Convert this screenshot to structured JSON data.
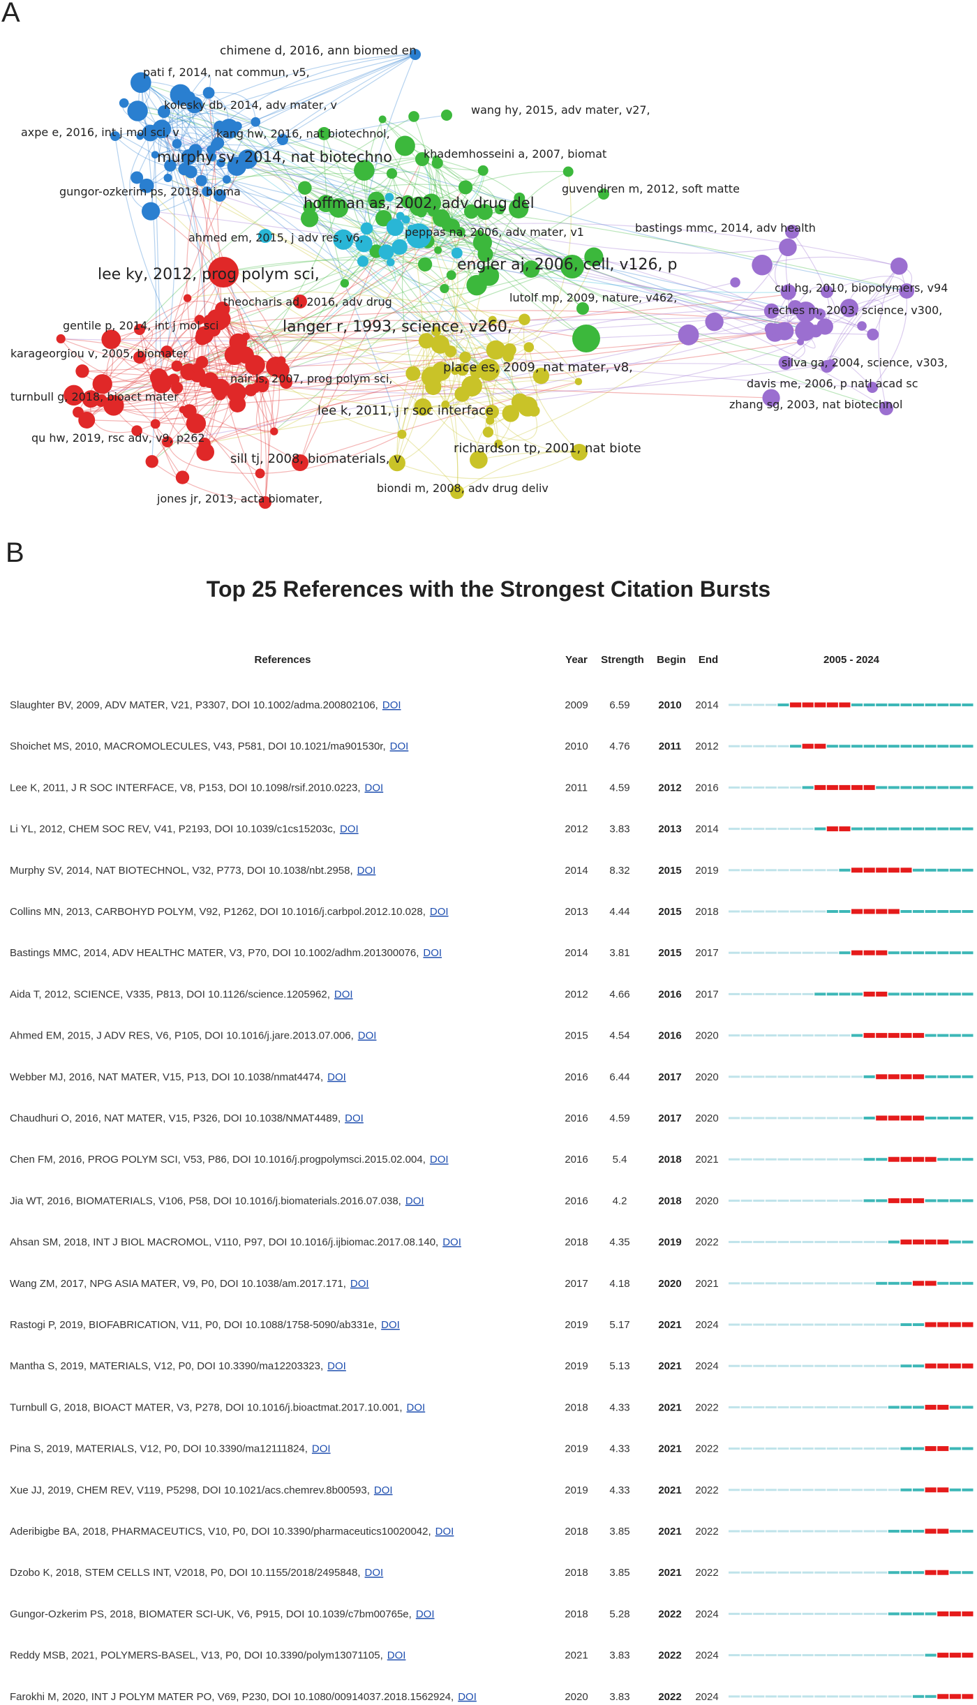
{
  "panels": {
    "a_label": "A",
    "b_label": "B"
  },
  "chart_data": [
    {
      "type": "network",
      "clusters": [
        {
          "color": "#2a7fd0",
          "nodes": [
            {
              "label": "chimene d, 2016, ann biomed en"
            },
            {
              "label": "pati f, 2014, nat commun, v5,"
            },
            {
              "label": "kolesky db, 2014, adv mater, v"
            },
            {
              "label": "axpe e, 2016, int j mol sci, v"
            },
            {
              "label": "kang hw, 2016, nat biotechnol,"
            },
            {
              "label": "murphy sv, 2014, nat biotechno"
            },
            {
              "label": "gungor-ozkerim ps, 2018, bioma"
            }
          ]
        },
        {
          "color": "#3cb83c",
          "nodes": [
            {
              "label": "wang hy, 2015, adv mater, v27,"
            },
            {
              "label": "khademhosseini a, 2007, biomat"
            },
            {
              "label": "hoffman as, 2002, adv drug del"
            },
            {
              "label": "guvendiren m, 2012, soft matte"
            },
            {
              "label": "engler aj, 2006, cell, v126, p"
            },
            {
              "label": "lutolf mp, 2009, nature, v462,"
            },
            {
              "label": "langer r, 1993, science, v260,"
            }
          ]
        },
        {
          "color": "#29b6d6",
          "nodes": [
            {
              "label": "ahmed em, 2015, j adv res, v6,"
            },
            {
              "label": "peppas na, 2006, adv mater, v1"
            }
          ]
        },
        {
          "color": "#e02828",
          "nodes": [
            {
              "label": "lee ky, 2012, prog polym sci,"
            },
            {
              "label": "theocharis ad, 2016, adv drug"
            },
            {
              "label": "gentile p, 2014, int j mol sci"
            },
            {
              "label": "karageorgiou v, 2005, biomater"
            },
            {
              "label": "nair ls, 2007, prog polym sci,"
            },
            {
              "label": "turnbull g, 2018, bioact mater"
            },
            {
              "label": "qu hw, 2019, rsc adv, v9, p262"
            },
            {
              "label": "sill tj, 2008, biomaterials, v"
            },
            {
              "label": "jones jr, 2013, acta biomater,"
            }
          ]
        },
        {
          "color": "#c9c328",
          "nodes": [
            {
              "label": "place es, 2009, nat mater, v8,"
            },
            {
              "label": "lee k, 2011, j r soc interface"
            },
            {
              "label": "richardson tp, 2001, nat biote"
            },
            {
              "label": "biondi m, 2008, adv drug deliv"
            }
          ]
        },
        {
          "color": "#9b6fd0",
          "nodes": [
            {
              "label": "bastings mmc, 2014, adv health"
            },
            {
              "label": "cui hg, 2010, biopolymers, v94"
            },
            {
              "label": "reches m, 2003, science, v300,"
            },
            {
              "label": "silva ga, 2004, science, v303,"
            },
            {
              "label": "davis me, 2006, p natl acad sc"
            },
            {
              "label": "zhang sg, 2003, nat biotechnol"
            }
          ]
        }
      ]
    },
    {
      "type": "table",
      "title": "Top 25 References with the Strongest Citation Bursts",
      "columns": [
        "References",
        "Year",
        "Strength",
        "Begin",
        "End",
        "2005 - 2024"
      ],
      "year_range": [
        2005,
        2024
      ],
      "colors": {
        "burst": "#e51b1b",
        "active": "#3db7b7",
        "inactive": "#bfe3ea"
      },
      "link_label": "DOI",
      "rows": [
        {
          "ref": "Slaughter BV, 2009, ADV MATER, V21, P3307, DOI 10.1002/adma.200802106,",
          "year": 2009,
          "strength": "6.59",
          "begin": 2010,
          "end": 2014
        },
        {
          "ref": "Shoichet MS, 2010, MACROMOLECULES, V43, P581, DOI 10.1021/ma901530r,",
          "year": 2010,
          "strength": "4.76",
          "begin": 2011,
          "end": 2012
        },
        {
          "ref": "Lee K, 2011, J R SOC INTERFACE, V8, P153, DOI 10.1098/rsif.2010.0223,",
          "year": 2011,
          "strength": "4.59",
          "begin": 2012,
          "end": 2016
        },
        {
          "ref": "Li YL, 2012, CHEM SOC REV, V41, P2193, DOI 10.1039/c1cs15203c,",
          "year": 2012,
          "strength": "3.83",
          "begin": 2013,
          "end": 2014
        },
        {
          "ref": "Murphy SV, 2014, NAT BIOTECHNOL, V32, P773, DOI 10.1038/nbt.2958,",
          "year": 2014,
          "strength": "8.32",
          "begin": 2015,
          "end": 2019
        },
        {
          "ref": "Collins MN, 2013, CARBOHYD POLYM, V92, P1262, DOI 10.1016/j.carbpol.2012.10.028,",
          "year": 2013,
          "strength": "4.44",
          "begin": 2015,
          "end": 2018
        },
        {
          "ref": "Bastings MMC, 2014, ADV HEALTHC MATER, V3, P70, DOI 10.1002/adhm.201300076,",
          "year": 2014,
          "strength": "3.81",
          "begin": 2015,
          "end": 2017
        },
        {
          "ref": "Aida T, 2012, SCIENCE, V335, P813, DOI 10.1126/science.1205962,",
          "year": 2012,
          "strength": "4.66",
          "begin": 2016,
          "end": 2017
        },
        {
          "ref": "Ahmed EM, 2015, J ADV RES, V6, P105, DOI 10.1016/j.jare.2013.07.006,",
          "year": 2015,
          "strength": "4.54",
          "begin": 2016,
          "end": 2020
        },
        {
          "ref": "Webber MJ, 2016, NAT MATER, V15, P13, DOI 10.1038/nmat4474,",
          "year": 2016,
          "strength": "6.44",
          "begin": 2017,
          "end": 2020
        },
        {
          "ref": "Chaudhuri O, 2016, NAT MATER, V15, P326, DOI 10.1038/NMAT4489,",
          "year": 2016,
          "strength": "4.59",
          "begin": 2017,
          "end": 2020
        },
        {
          "ref": "Chen FM, 2016, PROG POLYM SCI, V53, P86, DOI 10.1016/j.progpolymsci.2015.02.004,",
          "year": 2016,
          "strength": "5.4",
          "begin": 2018,
          "end": 2021
        },
        {
          "ref": "Jia WT, 2016, BIOMATERIALS, V106, P58, DOI 10.1016/j.biomaterials.2016.07.038,",
          "year": 2016,
          "strength": "4.2",
          "begin": 2018,
          "end": 2020
        },
        {
          "ref": "Ahsan SM, 2018, INT J BIOL MACROMOL, V110, P97, DOI 10.1016/j.ijbiomac.2017.08.140,",
          "year": 2018,
          "strength": "4.35",
          "begin": 2019,
          "end": 2022
        },
        {
          "ref": "Wang ZM, 2017, NPG ASIA MATER, V9, P0, DOI 10.1038/am.2017.171,",
          "year": 2017,
          "strength": "4.18",
          "begin": 2020,
          "end": 2021
        },
        {
          "ref": "Rastogi P, 2019, BIOFABRICATION, V11, P0, DOI 10.1088/1758-5090/ab331e,",
          "year": 2019,
          "strength": "5.17",
          "begin": 2021,
          "end": 2024
        },
        {
          "ref": "Mantha S, 2019, MATERIALS, V12, P0, DOI 10.3390/ma12203323,",
          "year": 2019,
          "strength": "5.13",
          "begin": 2021,
          "end": 2024
        },
        {
          "ref": "Turnbull G, 2018, BIOACT MATER, V3, P278, DOI 10.1016/j.bioactmat.2017.10.001,",
          "year": 2018,
          "strength": "4.33",
          "begin": 2021,
          "end": 2022
        },
        {
          "ref": "Pina S, 2019, MATERIALS, V12, P0, DOI 10.3390/ma12111824,",
          "year": 2019,
          "strength": "4.33",
          "begin": 2021,
          "end": 2022
        },
        {
          "ref": "Xue JJ, 2019, CHEM REV, V119, P5298, DOI 10.1021/acs.chemrev.8b00593,",
          "year": 2019,
          "strength": "4.33",
          "begin": 2021,
          "end": 2022
        },
        {
          "ref": "Aderibigbe BA, 2018, PHARMACEUTICS, V10, P0, DOI 10.3390/pharmaceutics10020042,",
          "year": 2018,
          "strength": "3.85",
          "begin": 2021,
          "end": 2022
        },
        {
          "ref": "Dzobo K, 2018, STEM CELLS INT, V2018, P0, DOI 10.1155/2018/2495848,",
          "year": 2018,
          "strength": "3.85",
          "begin": 2021,
          "end": 2022
        },
        {
          "ref": "Gungor-Ozkerim PS, 2018, BIOMATER SCI-UK, V6, P915, DOI 10.1039/c7bm00765e,",
          "year": 2018,
          "strength": "5.28",
          "begin": 2022,
          "end": 2024
        },
        {
          "ref": "Reddy MSB, 2021, POLYMERS-BASEL, V13, P0, DOI 10.3390/polym13071105,",
          "year": 2021,
          "strength": "3.83",
          "begin": 2022,
          "end": 2024
        },
        {
          "ref": "Farokhi M, 2020, INT J POLYM MATER PO, V69, P230, DOI 10.1080/00914037.2018.1562924,",
          "year": 2020,
          "strength": "3.83",
          "begin": 2022,
          "end": 2024
        }
      ]
    }
  ]
}
